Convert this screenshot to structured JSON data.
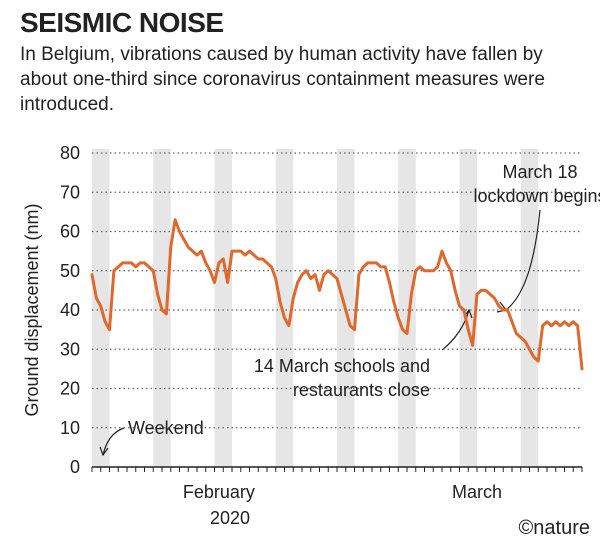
{
  "chart_data": {
    "type": "line",
    "title": "SEISMIC NOISE",
    "subtitle": "In Belgium, vibrations caused by human activity have fallen by about one-third since coronavirus containment measures were introduced.",
    "ylabel": "Ground displacement (nm)",
    "credit": "©nature",
    "x_axis_year": "2020",
    "xlim": [
      0,
      56
    ],
    "xticks": [
      {
        "value": 14.5,
        "label": "February"
      },
      {
        "value": 44,
        "label": "March"
      }
    ],
    "xminorticks": [
      0,
      1,
      2,
      3,
      4,
      5,
      6,
      7,
      8,
      9,
      10,
      11,
      12,
      13,
      14,
      15,
      16,
      17,
      18,
      19,
      20,
      21,
      22,
      23,
      24,
      25,
      26,
      27,
      28,
      29,
      30,
      31,
      32,
      33,
      34,
      35,
      36,
      37,
      38,
      39,
      40,
      41,
      42,
      43,
      44,
      45,
      46,
      47,
      48,
      49,
      50,
      51,
      52,
      53,
      54,
      55,
      56
    ],
    "ylim": [
      0,
      80
    ],
    "yticks": [
      0,
      10,
      20,
      30,
      40,
      50,
      60,
      70,
      80
    ],
    "grid": true,
    "shaded_spans": [
      [
        0,
        2
      ],
      [
        7,
        9
      ],
      [
        14,
        16
      ],
      [
        21,
        23
      ],
      [
        28,
        30
      ],
      [
        35,
        37
      ],
      [
        42,
        44
      ],
      [
        49,
        51
      ]
    ],
    "shade_color": "#e6e6e6",
    "annotations": [
      {
        "lines": [
          "March 18",
          "lockdown begins"
        ]
      },
      {
        "lines": [
          "14 March schools and",
          "restaurants close"
        ]
      },
      {
        "lines": [
          "Weekend"
        ]
      }
    ],
    "series": [
      {
        "color": "#e0682c",
        "x": [
          0,
          0.5,
          1,
          1.5,
          2,
          2.5,
          3,
          3.5,
          4,
          4.5,
          5,
          5.5,
          6,
          6.5,
          7,
          7.5,
          8,
          8.5,
          9,
          9.5,
          10,
          10.5,
          11,
          11.5,
          12,
          12.5,
          13,
          13.5,
          14,
          14.5,
          15,
          15.5,
          16,
          16.5,
          17,
          17.5,
          18,
          18.5,
          19,
          19.5,
          20,
          20.5,
          21,
          21.5,
          22,
          22.5,
          23,
          23.5,
          24,
          24.5,
          25,
          25.5,
          26,
          26.5,
          27,
          27.5,
          28,
          28.5,
          29,
          29.5,
          30,
          30.5,
          31,
          31.5,
          32,
          32.5,
          33,
          33.5,
          34,
          34.5,
          35,
          35.5,
          36,
          36.5,
          37,
          37.5,
          38,
          38.5,
          39,
          39.5,
          40,
          40.5,
          41,
          41.5,
          42,
          42.5,
          43,
          43.5,
          44,
          44.5,
          45,
          45.5,
          46,
          46.5,
          47,
          47.5,
          48,
          48.5,
          49,
          49.5,
          50,
          50.5,
          51,
          51.5,
          52,
          52.5,
          53,
          53.5,
          54,
          54.5,
          55,
          55.5,
          56
        ],
        "values": [
          49,
          43,
          41,
          37,
          35,
          50,
          51,
          52,
          52,
          52,
          51,
          52,
          52,
          51,
          50,
          44,
          40,
          39,
          56,
          63,
          60,
          58,
          56,
          55,
          54,
          55,
          52,
          50,
          47,
          52,
          53,
          47,
          55,
          55,
          55,
          54,
          55,
          54,
          53,
          53,
          52,
          51,
          48,
          42,
          38,
          36,
          43,
          47,
          49,
          50,
          48,
          49,
          45,
          49,
          50,
          49,
          48,
          44,
          40,
          36,
          35,
          49,
          51,
          52,
          52,
          52,
          51,
          51,
          47,
          42,
          38,
          35,
          34,
          44,
          50,
          51,
          50,
          50,
          50,
          51,
          55,
          52,
          50,
          45,
          41,
          40,
          35,
          31,
          44,
          45,
          45,
          44,
          43,
          41,
          40,
          40,
          37,
          34,
          33,
          32,
          30,
          28,
          27,
          36,
          37,
          36,
          37,
          36,
          37,
          36,
          37,
          36,
          25
        ]
      }
    ]
  }
}
